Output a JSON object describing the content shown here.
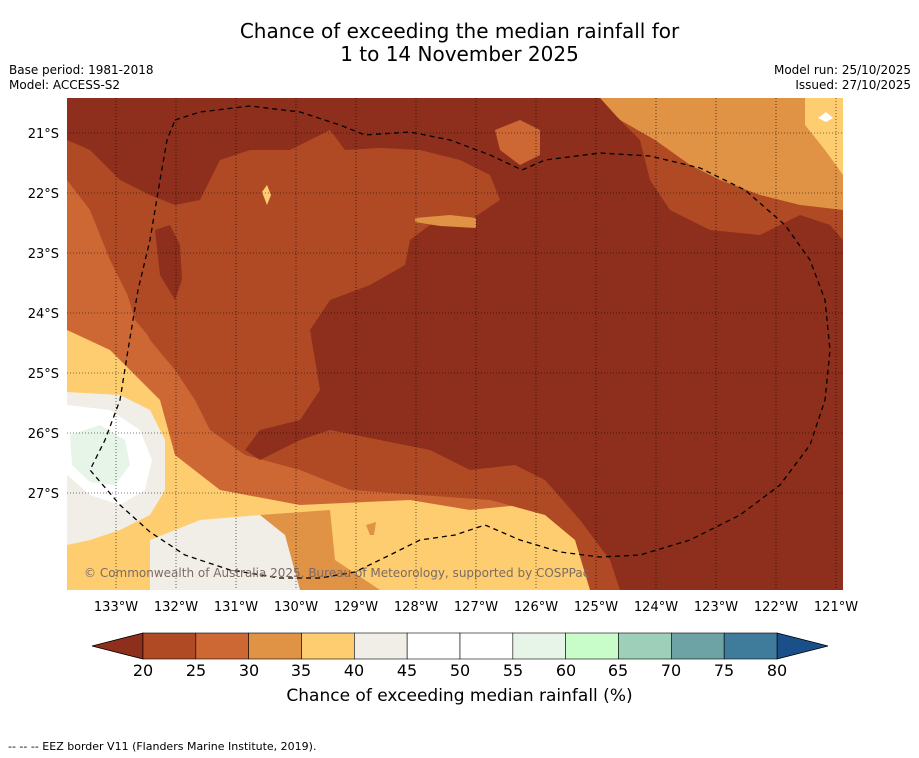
{
  "title": {
    "line1": "Chance of exceeding the median rainfall for",
    "line2": "1 to 14 November 2025"
  },
  "meta_left": {
    "base_period": "Base period: 1981-2018",
    "model": "Model: ACCESS-S2"
  },
  "meta_right": {
    "model_run": "Model run: 25/10/2025",
    "issued": "Issued: 27/10/2025"
  },
  "map": {
    "lat_labels": [
      "21°S",
      "22°S",
      "23°S",
      "24°S",
      "25°S",
      "26°S",
      "27°S"
    ],
    "lon_labels": [
      "133°W",
      "132°W",
      "131°W",
      "130°W",
      "129°W",
      "128°W",
      "127°W",
      "126°W",
      "125°W",
      "124°W",
      "123°W",
      "122°W",
      "121°W"
    ],
    "copyright": "© Commonwealth of Australia 2025, Bureau of Meteorology, supported by COSPPac",
    "colors": {
      "below20": "#8e2e1c",
      "c20_25": "#b04a25",
      "c25_30": "#cd6835",
      "c30_35": "#e09245",
      "c35_40": "#fecd70",
      "c40_45": "#f1ede7",
      "c45_55": "#ffffff",
      "c55_60": "#e6f5e8",
      "c60_65": "#c8fcc8",
      "c65_70": "#9ecfb8",
      "c70_75": "#6ea3a5",
      "c75_80": "#3f7b9a",
      "above80": "#1a508a"
    }
  },
  "colorbar": {
    "ticks": [
      "20",
      "25",
      "30",
      "35",
      "40",
      "45",
      "50",
      "55",
      "60",
      "65",
      "70",
      "75",
      "80"
    ],
    "label": "Chance of exceeding median rainfall (%)",
    "colors": [
      "#b04a25",
      "#cd6835",
      "#e09245",
      "#fecd70",
      "#f1ede7",
      "#ffffff",
      "#ffffff",
      "#e6f5e8",
      "#c8fcc8",
      "#9ecfb8",
      "#6ea3a5",
      "#3f7b9a"
    ],
    "low_arrow_color": "#8e2e1c",
    "high_arrow_color": "#1a508a"
  },
  "footer": "-- -- -- EEZ border V11 (Flanders Marine Institute, 2019)."
}
